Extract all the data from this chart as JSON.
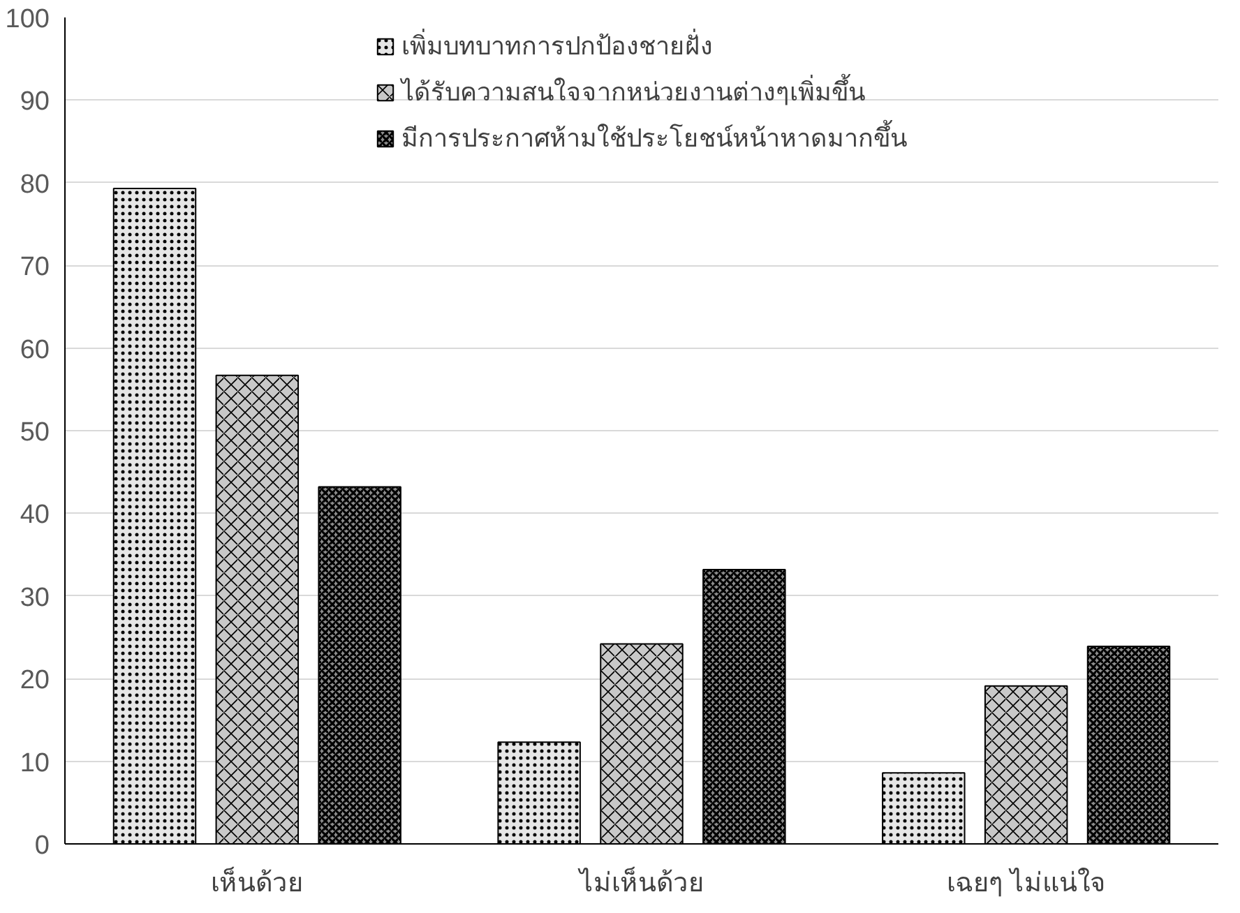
{
  "chart_data": {
    "type": "bar",
    "categories": [
      "เห็นด้วย",
      "ไม่เห็นด้วย",
      "เฉยๆ ไม่แน่ใจ"
    ],
    "series": [
      {
        "name": "เพิ่มบทบาทการปกป้องชายฝั่ง",
        "color": "#e6e6e6",
        "values": [
          79.3,
          12.3,
          8.6
        ]
      },
      {
        "name": "ได้รับความสนใจจากหน่วยงานต่างๆเพิ่มขึ้น",
        "color": "#c8c8c8",
        "values": [
          56.7,
          24.2,
          19.1
        ]
      },
      {
        "name": "มีการประกาศห้ามใช้ประโยชน์หน้าหาดมากขึ้น",
        "color": "#8c8c8c",
        "values": [
          43.2,
          33.2,
          23.9
        ]
      }
    ],
    "ylim": [
      0,
      100
    ],
    "yticks": [
      0,
      10,
      20,
      30,
      40,
      50,
      60,
      70,
      80,
      90,
      100
    ],
    "grid": "y",
    "legend": "top"
  }
}
